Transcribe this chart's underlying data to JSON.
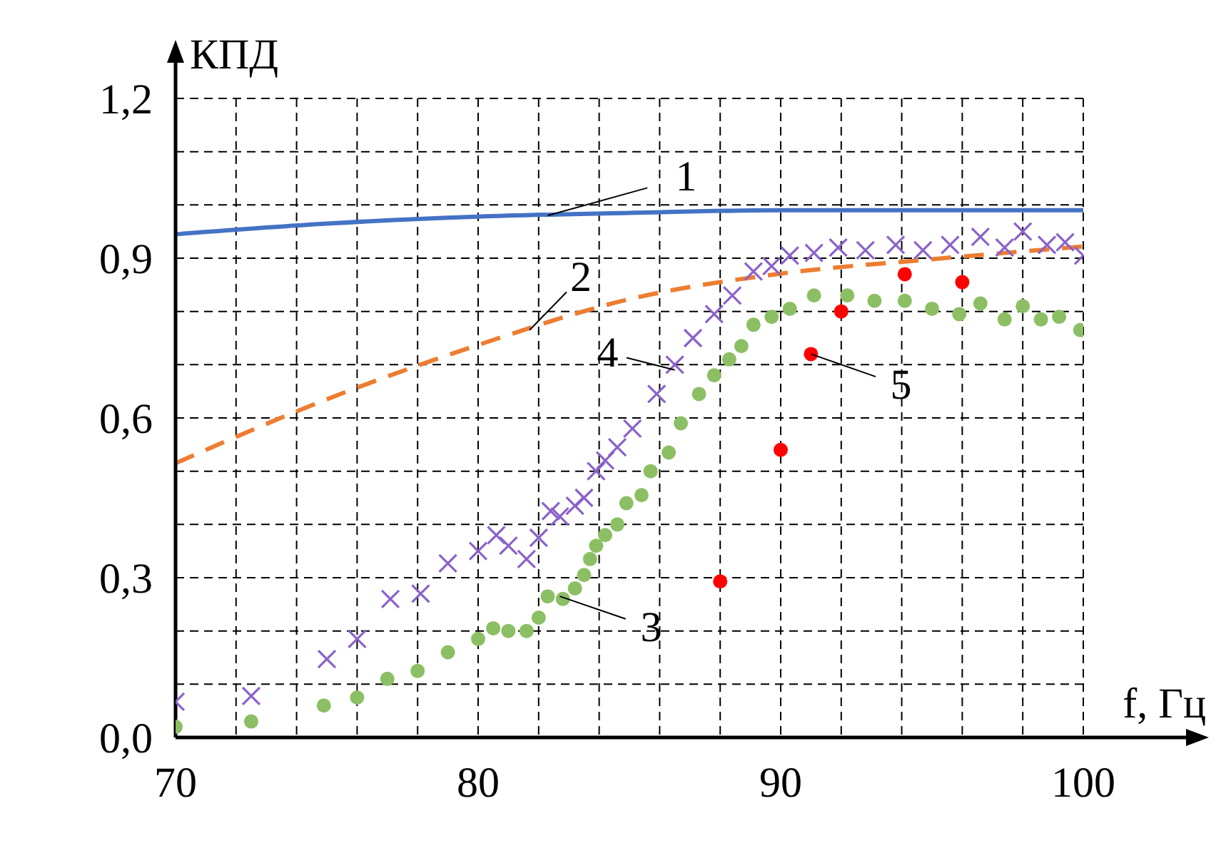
{
  "chart_data": {
    "type": "line",
    "xlabel": "f, Гц",
    "ylabel": "КПД",
    "xlim": [
      70,
      100
    ],
    "xticks": [
      {
        "value": 70,
        "label": "70"
      },
      {
        "value": 72,
        "label": null
      },
      {
        "value": 74,
        "label": null
      },
      {
        "value": 76,
        "label": null
      },
      {
        "value": 78,
        "label": null
      },
      {
        "value": 80,
        "label": "80"
      },
      {
        "value": 82,
        "label": null
      },
      {
        "value": 84,
        "label": null
      },
      {
        "value": 86,
        "label": null
      },
      {
        "value": 88,
        "label": null
      },
      {
        "value": 90,
        "label": "90"
      },
      {
        "value": 92,
        "label": null
      },
      {
        "value": 94,
        "label": null
      },
      {
        "value": 96,
        "label": null
      },
      {
        "value": 98,
        "label": null
      },
      {
        "value": 100,
        "label": "100"
      }
    ],
    "ylim": [
      0,
      1.2
    ],
    "yticks": [
      {
        "value": 0,
        "label": "0,0"
      },
      {
        "value": 0.1,
        "label": null
      },
      {
        "value": 0.2,
        "label": null
      },
      {
        "value": 0.3,
        "label": "0,3"
      },
      {
        "value": 0.4,
        "label": null
      },
      {
        "value": 0.5,
        "label": null
      },
      {
        "value": 0.6,
        "label": "0,6"
      },
      {
        "value": 0.7,
        "label": null
      },
      {
        "value": 0.8,
        "label": null
      },
      {
        "value": 0.9,
        "label": "0,9"
      },
      {
        "value": 1.0,
        "label": null
      },
      {
        "value": 1.1,
        "label": null
      },
      {
        "value": 1.2,
        "label": "1,2"
      }
    ],
    "grid": true,
    "series": [
      {
        "color": "#4472c4",
        "line_style": "solid",
        "marker": "none",
        "x": [
          70,
          75,
          80,
          85,
          90,
          95,
          100
        ],
        "values": [
          0.945,
          0.965,
          0.978,
          0.985,
          0.99,
          0.99,
          0.99
        ]
      },
      {
        "color": "#ed7d31",
        "line_style": "dashed",
        "marker": "none",
        "x": [
          70,
          75,
          80,
          85,
          90,
          95,
          100
        ],
        "values": [
          0.515,
          0.635,
          0.737,
          0.823,
          0.871,
          0.898,
          0.922
        ]
      },
      {
        "type": "scatter",
        "color": "#8cbf64",
        "marker": "circle",
        "x": [
          70,
          72.5,
          74.9,
          76,
          77,
          78,
          79,
          80,
          80.5,
          81,
          81.6,
          82,
          82.3,
          82.8,
          83.2,
          83.5,
          83.7,
          83.9,
          84.2,
          84.6,
          84.9,
          85.4,
          85.7,
          86.3,
          86.7,
          87.3,
          87.8,
          88.3,
          88.7,
          89.1,
          89.7,
          90.3,
          91.1,
          92.2,
          93.1,
          94.1,
          95,
          95.9,
          96.6,
          97.4,
          98,
          98.6,
          99.2,
          99.9
        ],
        "values": [
          0.02,
          0.03,
          0.06,
          0.075,
          0.11,
          0.125,
          0.16,
          0.185,
          0.205,
          0.2,
          0.2,
          0.225,
          0.265,
          0.26,
          0.28,
          0.305,
          0.335,
          0.36,
          0.38,
          0.4,
          0.44,
          0.455,
          0.5,
          0.535,
          0.59,
          0.645,
          0.68,
          0.71,
          0.735,
          0.775,
          0.79,
          0.805,
          0.83,
          0.83,
          0.82,
          0.82,
          0.805,
          0.795,
          0.815,
          0.785,
          0.81,
          0.785,
          0.79,
          0.765
        ]
      },
      {
        "type": "scatter",
        "color": "#8b62c9",
        "marker": "cross",
        "x": [
          70,
          72.5,
          75,
          76,
          77.1,
          78.1,
          79,
          80,
          80.6,
          81,
          81.6,
          82,
          82.4,
          82.7,
          83.2,
          83.5,
          83.9,
          84.2,
          84.6,
          85.1,
          85.9,
          86.5,
          87.1,
          87.8,
          88.4,
          89.1,
          89.7,
          90.3,
          91.1,
          91.9,
          92.8,
          93.8,
          94.7,
          95.6,
          96.6,
          97.4,
          98,
          98.8,
          99.4,
          100
        ],
        "values": [
          0.067,
          0.078,
          0.147,
          0.185,
          0.26,
          0.27,
          0.327,
          0.35,
          0.38,
          0.36,
          0.335,
          0.375,
          0.425,
          0.415,
          0.435,
          0.45,
          0.5,
          0.52,
          0.545,
          0.58,
          0.645,
          0.7,
          0.75,
          0.795,
          0.83,
          0.875,
          0.885,
          0.905,
          0.91,
          0.92,
          0.915,
          0.925,
          0.915,
          0.925,
          0.94,
          0.92,
          0.95,
          0.925,
          0.93,
          0.905
        ]
      },
      {
        "type": "scatter",
        "color": "#ff0000",
        "marker": "circle",
        "x": [
          88,
          90,
          91,
          92,
          94.1,
          96
        ],
        "values": [
          0.293,
          0.54,
          0.72,
          0.8,
          0.87,
          0.855
        ]
      }
    ],
    "annotations": [
      {
        "text": "1",
        "x": 82.3,
        "y": 0.98
      },
      {
        "text": "2",
        "x": 81.7,
        "y": 0.765
      },
      {
        "text": "3",
        "x": 82.7,
        "y": 0.265
      },
      {
        "text": "4",
        "x": 86.5,
        "y": 0.69
      },
      {
        "text": "5",
        "x": 91,
        "y": 0.72
      }
    ]
  }
}
